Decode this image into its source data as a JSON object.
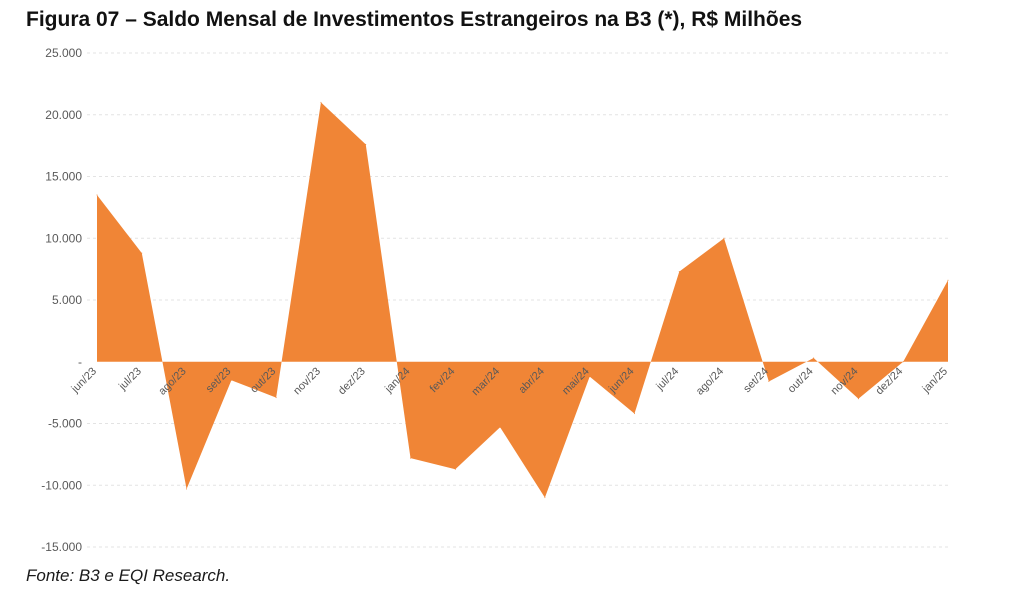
{
  "title": "Figura 07 – Saldo Mensal de Investimentos Estrangeiros na B3 (*), R$ Milhões",
  "source": "Fonte: B3 e EQI Research.",
  "chart_data": {
    "type": "area",
    "title": "Figura 07 – Saldo Mensal de Investimentos Estrangeiros na B3 (*), R$ Milhões",
    "xlabel": "",
    "ylabel": "",
    "categories": [
      "jun/23",
      "jul/23",
      "ago/23",
      "set/23",
      "out/23",
      "nov/23",
      "dez/23",
      "jan/24",
      "fev/24",
      "mar/24",
      "abr/24",
      "mai/24",
      "jun/24",
      "jul/24",
      "ago/24",
      "set/24",
      "out/24",
      "nov/24",
      "dez/24",
      "jan/25"
    ],
    "series": [
      {
        "values": [
          13500,
          8800,
          -10300,
          -1500,
          -2900,
          21000,
          17600,
          -7800,
          -8700,
          -5300,
          -11000,
          -1200,
          -4200,
          7300,
          10000,
          -1600,
          300,
          -3000,
          0,
          6600
        ]
      }
    ],
    "ylim": [
      -15000,
      25000
    ],
    "yticks": [
      25000,
      20000,
      15000,
      10000,
      5000,
      0,
      -5000,
      -10000,
      -15000
    ],
    "ytick_labels": [
      "25.000",
      "20.000",
      "15.000",
      "10.000",
      "5.000",
      "-",
      "-5.000",
      "-10.000",
      "-15.000"
    ],
    "grid": true,
    "fill_color": "#F08536"
  }
}
